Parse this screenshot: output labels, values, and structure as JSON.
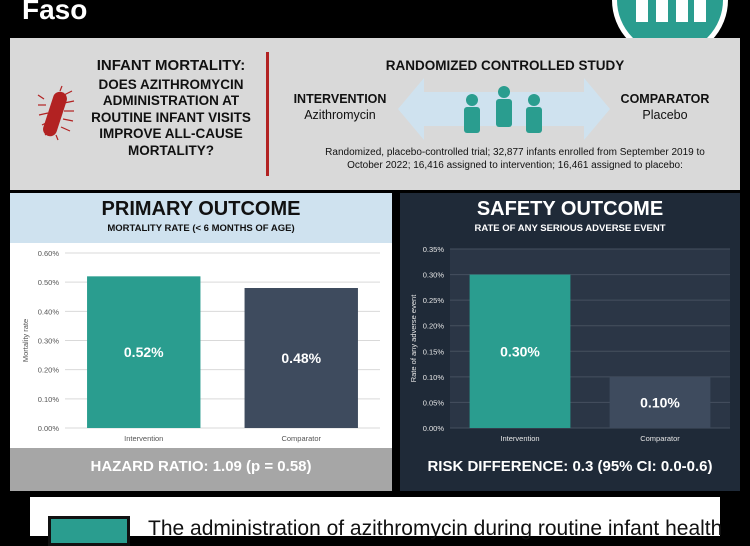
{
  "header": {
    "title": "Faso"
  },
  "question": {
    "line1": "INFANT MORTALITY:",
    "body": "DOES AZITHROMYCIN ADMINISTRATION AT ROUTINE INFANT VISITS IMPROVE ALL-CAUSE MORTALITY?"
  },
  "study": {
    "title": "RANDOMIZED CONTROLLED STUDY",
    "intervention_label": "INTERVENTION",
    "intervention_value": "Azithromycin",
    "comparator_label": "COMPARATOR",
    "comparator_value": "Placebo",
    "description": "Randomized, placebo-controlled trial; 32,877 infants enrolled from September 2019 to October 2022; 16,416 assigned to intervention; 16,461 assigned to placebo:"
  },
  "primary": {
    "title": "PRIMARY OUTCOME",
    "subtitle": "MORTALITY RATE (< 6 MONTHS OF AGE)",
    "footer": "HAZARD RATIO: 1.09 (p = 0.58)"
  },
  "safety": {
    "title": "SAFETY OUTCOME",
    "subtitle": "RATE OF ANY SERIOUS ADVERSE EVENT",
    "footer": "RISK DIFFERENCE: 0.3 (95% CI: 0.0-0.6)"
  },
  "conclusion": {
    "text": "The administration of azithromycin during routine infant health"
  },
  "colors": {
    "teal": "#2a9d8f",
    "slate": "#3e4b5e",
    "navy": "#1f2a38",
    "red": "#b22222",
    "lightblue": "#cfe2ef"
  },
  "chart_data": [
    {
      "type": "bar",
      "categories": [
        "Intervention",
        "Comparator"
      ],
      "values": [
        0.52,
        0.48
      ],
      "value_labels": [
        "0.52%",
        "0.48%"
      ],
      "ylabel": "Mortality rate",
      "ylim": [
        0,
        0.6
      ],
      "yticks": [
        "0.00%",
        "0.10%",
        "0.20%",
        "0.30%",
        "0.40%",
        "0.50%",
        "0.60%"
      ],
      "colors": [
        "#2a9d8f",
        "#3e4b5e"
      ],
      "grid": true
    },
    {
      "type": "bar",
      "categories": [
        "Intervention",
        "Comparator"
      ],
      "values": [
        0.3,
        0.1
      ],
      "value_labels": [
        "0.30%",
        "0.10%"
      ],
      "ylabel": "Rate of any adverse event",
      "ylim": [
        0,
        0.35
      ],
      "yticks": [
        "0.00%",
        "0.05%",
        "0.10%",
        "0.15%",
        "0.20%",
        "0.25%",
        "0.30%",
        "0.35%"
      ],
      "colors": [
        "#2a9d8f",
        "#3e4b5e"
      ],
      "grid": true
    }
  ]
}
